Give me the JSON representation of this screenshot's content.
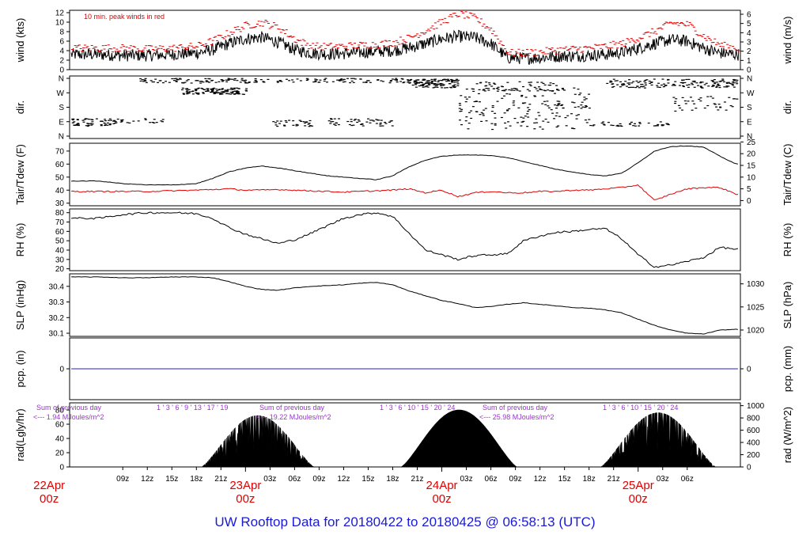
{
  "title": "UW Rooftop Data for 20180422  to  20180425 @ 06:58:13  (UTC)",
  "colors": {
    "title": "#1a1ad6",
    "date": "#e00000",
    "peak": "#e00000",
    "dew": "#e00000",
    "precip": "#2222cc",
    "note": "#9933cc"
  },
  "chart_data": [
    {
      "type": "line",
      "panel": "wind",
      "ylabel": "wind (kts)",
      "ylabel_right": "wind (m/s)",
      "ylim": [
        0,
        12.5
      ],
      "yticks": [
        0,
        2,
        4,
        6,
        8,
        10,
        12
      ],
      "yticks_right": [
        0,
        1,
        2,
        3,
        4,
        5,
        6
      ],
      "annotation": "10 min. peak winds in red",
      "series": [
        {
          "name": "wind",
          "x": [
            0,
            3,
            6,
            9,
            12,
            14,
            16,
            18,
            20,
            22,
            24,
            26,
            28,
            30,
            32,
            34,
            36,
            38,
            40,
            42,
            44,
            46,
            48,
            50,
            52,
            54,
            56,
            58,
            60,
            62,
            64,
            66,
            68,
            70,
            72,
            74,
            76,
            78
          ],
          "values": [
            3.2,
            3.0,
            3.0,
            3.2,
            3.5,
            4.2,
            5.5,
            6.5,
            6.8,
            5.8,
            4.2,
            3.5,
            3.3,
            3.4,
            3.6,
            3.8,
            4.0,
            4.6,
            5.5,
            6.5,
            7.0,
            6.8,
            5.5,
            2.5,
            2.4,
            2.5,
            2.8,
            2.9,
            3.0,
            3.2,
            3.6,
            4.5,
            5.5,
            6.3,
            6.0,
            4.5,
            3.5,
            3.2
          ]
        },
        {
          "name": "peak",
          "x": [
            0,
            3,
            6,
            9,
            12,
            14,
            16,
            18,
            20,
            22,
            24,
            26,
            28,
            30,
            32,
            34,
            36,
            38,
            40,
            42,
            44,
            46,
            48,
            50,
            52,
            54,
            56,
            58,
            60,
            62,
            64,
            66,
            68,
            70,
            72,
            74,
            76,
            78
          ],
          "values": [
            4.2,
            4.2,
            4.0,
            4.2,
            4.6,
            5.8,
            7.5,
            9.0,
            9.6,
            8.5,
            6.0,
            4.6,
            4.5,
            4.6,
            4.8,
            5.0,
            5.4,
            6.4,
            8.0,
            9.8,
            11.5,
            10.5,
            8.0,
            3.2,
            3.2,
            3.4,
            3.8,
            4.0,
            4.2,
            4.6,
            5.2,
            6.4,
            7.8,
            9.5,
            9.2,
            6.6,
            4.8,
            4.2
          ]
        }
      ]
    },
    {
      "type": "scatter",
      "panel": "direction",
      "ylabel": "dir.",
      "ylabel_right": "dir.",
      "ytick_labels": [
        "N",
        "E",
        "S",
        "W",
        "N"
      ],
      "ylim": [
        0,
        360
      ]
    },
    {
      "type": "line",
      "panel": "temperature",
      "ylabel": "Tair/Tdew (F)",
      "ylabel_right": "Tair/Tdew (C)",
      "ylim": [
        28,
        76
      ],
      "yticks": [
        30,
        40,
        50,
        60,
        70
      ],
      "yticks_right": [
        0,
        5,
        10,
        15,
        20,
        25
      ],
      "series": [
        {
          "name": "Tair",
          "x": [
            0,
            3,
            6,
            9,
            12,
            14,
            16,
            18,
            20,
            22,
            24,
            26,
            28,
            30,
            32,
            34,
            36,
            38,
            40,
            42,
            44,
            46,
            48,
            50,
            52,
            54,
            56,
            58,
            60,
            62,
            64,
            66,
            68,
            70,
            72,
            74,
            76,
            78
          ],
          "values": [
            47,
            45,
            44,
            44,
            45,
            49,
            54,
            57,
            58.5,
            57,
            55,
            53,
            51,
            50,
            49,
            48,
            51,
            58,
            63,
            66,
            67,
            67,
            66.5,
            65,
            62,
            59,
            56,
            54,
            52,
            51,
            53,
            61,
            70,
            73.5,
            74,
            73,
            66,
            60
          ]
        },
        {
          "name": "Tdew",
          "x": [
            0,
            3,
            6,
            9,
            12,
            14,
            16,
            18,
            20,
            22,
            24,
            26,
            28,
            30,
            32,
            34,
            36,
            38,
            40,
            42,
            44,
            46,
            48,
            50,
            52,
            54,
            56,
            58,
            60,
            62,
            64,
            66,
            68,
            70,
            72,
            74,
            76,
            78
          ],
          "values": [
            39,
            39,
            39,
            39.5,
            40,
            40.5,
            41,
            40,
            40,
            40.5,
            40,
            39.5,
            39,
            38.5,
            39,
            39.5,
            40,
            41,
            38,
            40,
            35,
            38,
            39,
            38,
            38,
            39,
            39,
            40,
            40,
            41,
            42,
            44,
            32,
            37,
            41,
            42,
            42,
            37
          ]
        }
      ]
    },
    {
      "type": "line",
      "panel": "humidity",
      "ylabel": "RH (%)",
      "ylabel_right": "RH (%)",
      "ylim": [
        18,
        84
      ],
      "yticks": [
        20,
        30,
        40,
        50,
        60,
        70,
        80
      ],
      "series": [
        {
          "name": "RH",
          "x": [
            0,
            3,
            6,
            9,
            12,
            14,
            16,
            18,
            20,
            22,
            24,
            26,
            28,
            30,
            32,
            34,
            36,
            38,
            40,
            42,
            44,
            46,
            48,
            50,
            52,
            54,
            56,
            58,
            60,
            62,
            64,
            66,
            68,
            70,
            72,
            74,
            76,
            78
          ],
          "values": [
            74,
            78,
            80,
            80,
            79,
            74,
            64,
            57,
            52,
            47,
            51,
            58,
            66,
            74,
            78,
            80,
            76,
            58,
            40,
            35,
            30,
            34,
            35,
            36,
            50,
            55,
            59,
            60,
            62,
            63,
            52,
            35,
            22,
            24,
            28,
            32,
            43,
            41
          ]
        }
      ]
    },
    {
      "type": "line",
      "panel": "pressure",
      "ylabel": "SLP (inHg)",
      "ylabel_right": "SLP (hPa)",
      "ylim": [
        30.08,
        30.48
      ],
      "yticks": [
        30.1,
        30.2,
        30.3,
        30.4
      ],
      "yticks_right": [
        1020,
        1025,
        1030
      ],
      "series": [
        {
          "name": "SLP",
          "x": [
            0,
            3,
            6,
            9,
            12,
            14,
            16,
            18,
            20,
            22,
            24,
            26,
            28,
            30,
            32,
            34,
            36,
            38,
            40,
            42,
            44,
            46,
            48,
            50,
            52,
            54,
            56,
            58,
            60,
            62,
            64,
            66,
            68,
            70,
            72,
            74,
            76,
            78
          ],
          "values": [
            30.46,
            30.455,
            30.455,
            30.46,
            30.46,
            30.455,
            30.43,
            30.4,
            30.38,
            30.375,
            30.39,
            30.4,
            30.405,
            30.41,
            30.42,
            30.425,
            30.41,
            30.37,
            30.34,
            30.31,
            30.29,
            30.265,
            30.27,
            30.285,
            30.295,
            30.285,
            30.275,
            30.265,
            30.26,
            30.25,
            30.23,
            30.19,
            30.15,
            30.12,
            30.1,
            30.095,
            30.12,
            30.125
          ]
        }
      ]
    },
    {
      "type": "line",
      "panel": "precipitation",
      "ylabel": "pcp. (in)",
      "ylabel_right": "pcp. (mm)",
      "ylim": [
        -1,
        1
      ],
      "yticks": [
        0
      ],
      "yticks_right": [
        0
      ],
      "series": [
        {
          "name": "precip",
          "x": [
            0,
            78
          ],
          "values": [
            0,
            0
          ]
        }
      ]
    },
    {
      "type": "area",
      "panel": "radiation",
      "ylabel": "rad(Lgly/hr)",
      "ylabel_right": "rad (W/m^2)",
      "ylim": [
        0,
        90
      ],
      "yticks": [
        0,
        20,
        40,
        60,
        80
      ],
      "yticks_right": [
        0,
        200,
        400,
        600,
        800,
        1000
      ],
      "notes": [
        {
          "line1": "Sum of previous day",
          "line2": "<--- 1.94 MJoules/m^2",
          "hours": "1 ' 3 ' 6 ' 9 ' 13 ' 17 ' 19"
        },
        {
          "line1": "Sum of previous day",
          "line2": "<--- 19.22 MJoules/m^2",
          "hours": "1 ' 3 ' 6 ' 10 ' 15 ' 20 ' 24"
        },
        {
          "line1": "Sum of previous day",
          "line2": "<--- 25.98 MJoules/m^2",
          "hours": "1 ' 3 ' 6 ' 10 ' 15 ' 20 ' 24"
        }
      ],
      "days": [
        {
          "start": 12.6,
          "end": 26.4,
          "peak": 72,
          "variable": true
        },
        {
          "start": 37.0,
          "end": 51.2,
          "peak": 80,
          "variable": false
        },
        {
          "start": 61.4,
          "end": 75.5,
          "peak": 76,
          "variable": true
        }
      ]
    }
  ],
  "x_axis": {
    "range": [
      -3.5,
      78.5
    ],
    "ticks": [
      {
        "h": 3,
        "label": "09z"
      },
      {
        "h": 6,
        "label": "12z"
      },
      {
        "h": 9,
        "label": "15z"
      },
      {
        "h": 12,
        "label": "18z"
      },
      {
        "h": 15,
        "label": "21z"
      },
      {
        "h": 21,
        "label": "03z"
      },
      {
        "h": 24,
        "label": "06z"
      },
      {
        "h": 27,
        "label": "09z"
      },
      {
        "h": 30,
        "label": "12z"
      },
      {
        "h": 33,
        "label": "15z"
      },
      {
        "h": 36,
        "label": "18z"
      },
      {
        "h": 39,
        "label": "21z"
      },
      {
        "h": 45,
        "label": "03z"
      },
      {
        "h": 48,
        "label": "06z"
      },
      {
        "h": 51,
        "label": "09z"
      },
      {
        "h": 54,
        "label": "12z"
      },
      {
        "h": 57,
        "label": "15z"
      },
      {
        "h": 60,
        "label": "18z"
      },
      {
        "h": 63,
        "label": "21z"
      },
      {
        "h": 69,
        "label": "03z"
      },
      {
        "h": 72,
        "label": "06z"
      }
    ],
    "day_markers": [
      {
        "h": -6,
        "date": "22Apr",
        "time": "00z"
      },
      {
        "h": 18,
        "date": "23Apr",
        "time": "00z"
      },
      {
        "h": 42,
        "date": "24Apr",
        "time": "00z"
      },
      {
        "h": 66,
        "date": "25Apr",
        "time": "00z"
      }
    ]
  }
}
